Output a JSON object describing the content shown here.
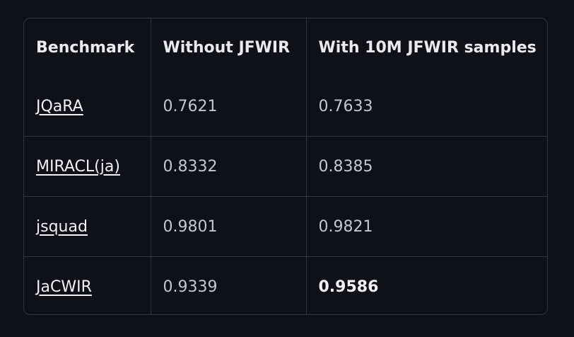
{
  "table": {
    "header": [
      "Benchmark",
      "Without JFWIR",
      "With 10M JFWIR samples"
    ],
    "rows": [
      [
        "JQaRA",
        "0.7621",
        "0.7633"
      ],
      [
        "MIRACL(ja)",
        "0.8332",
        "0.8385"
      ],
      [
        "jsquad",
        "0.9801",
        "0.9821"
      ],
      [
        "JaCWIR",
        "0.9339",
        "0.9586"
      ]
    ]
  }
}
